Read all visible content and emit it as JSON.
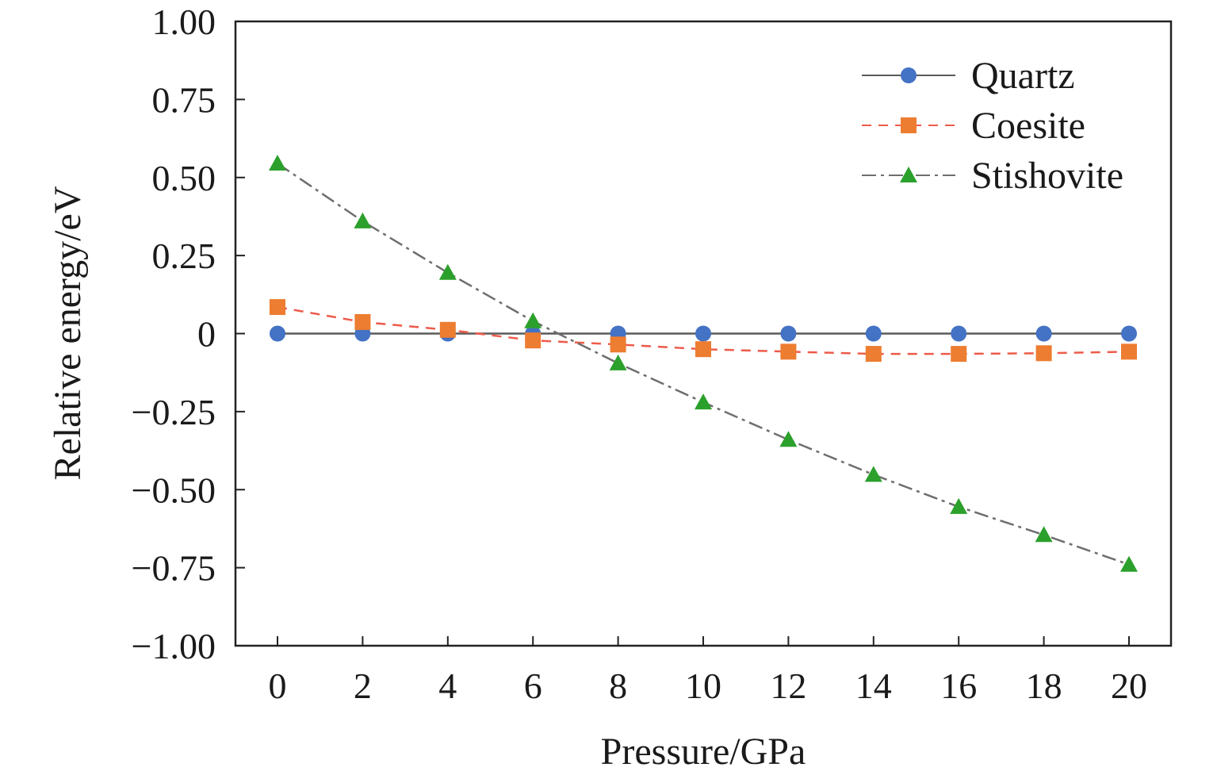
{
  "chart_data": {
    "type": "line",
    "title": "",
    "xlabel": "Pressure/GPa",
    "ylabel": "Relative energy/eV",
    "x": [
      0,
      2,
      4,
      6,
      8,
      10,
      12,
      14,
      16,
      18,
      20
    ],
    "x_tick_labels": [
      "0",
      "2",
      "4",
      "6",
      "8",
      "10",
      "12",
      "14",
      "16",
      "18",
      "20"
    ],
    "ylim": [
      -1.0,
      1.0
    ],
    "y_ticks": [
      1.0,
      0.75,
      0.5,
      0.25,
      0,
      -0.25,
      -0.5,
      -0.75,
      -1.0
    ],
    "y_tick_labels": [
      "1.00",
      "0.75",
      "0.50",
      "0.25",
      "0",
      "−0.25",
      "−0.50",
      "−0.75",
      "−1.00"
    ],
    "grid": false,
    "legend_position": "top-right",
    "series": [
      {
        "name": "Quartz",
        "values": [
          0,
          0,
          0,
          0,
          0,
          0,
          0,
          0,
          0,
          0,
          0
        ],
        "color": "#4472c4",
        "line_color": "#5a5a5a",
        "marker": "circle",
        "line_style": "solid"
      },
      {
        "name": "Coesite",
        "values": [
          0.085,
          0.037,
          0.012,
          -0.022,
          -0.035,
          -0.05,
          -0.058,
          -0.065,
          -0.065,
          -0.063,
          -0.058
        ],
        "color": "#ed7d31",
        "line_color": "#ed5b4a",
        "marker": "square",
        "line_style": "dashed"
      },
      {
        "name": "Stishovite",
        "values": [
          0.545,
          0.36,
          0.195,
          0.04,
          -0.095,
          -0.22,
          -0.34,
          -0.452,
          -0.555,
          -0.645,
          -0.74
        ],
        "color": "#2ca02c",
        "line_color": "#6e6e6e",
        "marker": "triangle",
        "line_style": "dashdot"
      }
    ]
  }
}
